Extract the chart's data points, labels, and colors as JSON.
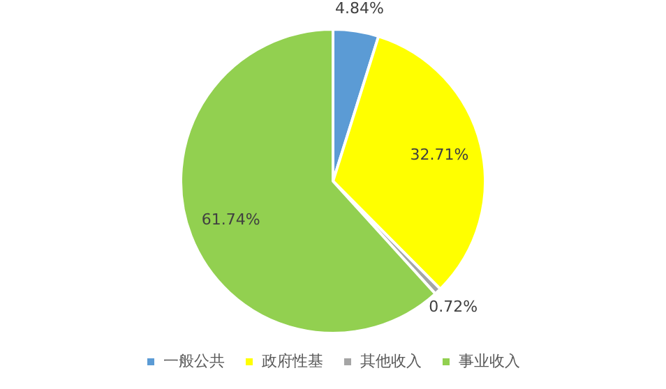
{
  "chart_data": {
    "type": "pie",
    "categories": [
      "一般公共",
      "政府性基",
      "其他收入",
      "事业收入"
    ],
    "values": [
      4.84,
      32.71,
      0.72,
      61.74
    ],
    "colors": [
      "#5b9bd5",
      "#ffff00",
      "#a5a5a5",
      "#92d050"
    ],
    "value_labels": [
      "4.84%",
      "32.71%",
      "0.72%",
      "61.74%"
    ],
    "legend": "bottom"
  }
}
